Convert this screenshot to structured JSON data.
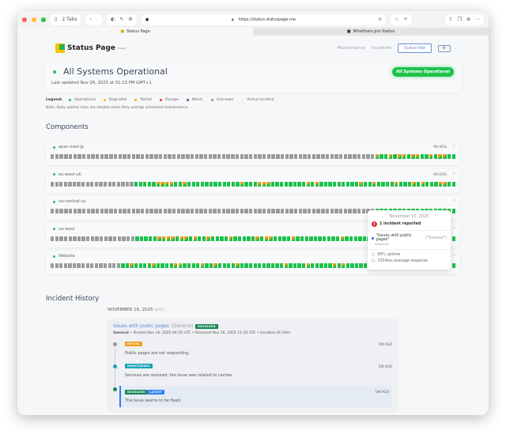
{
  "browser": {
    "tabs_count": "2 Tabs",
    "url": "https://status.statuspage.me",
    "tabs": [
      {
        "label": "Status Page"
      },
      {
        "label": "WhoHosts.pro Status"
      }
    ]
  },
  "header": {
    "logo": "Status Page",
    "logo_sub": "hosted",
    "nav": {
      "maintenance": "Maintenance",
      "incidents": "Incidents",
      "subscribe": "Subscribe"
    }
  },
  "status": {
    "title": "All Systems Operational",
    "updated": "Last updated Nov 26, 2025 at 01:23 PM GMT+1",
    "badge": "All Systems Operational"
  },
  "legend": {
    "label": "Legend:",
    "items": [
      {
        "label": "Operational",
        "color": "#19c24b"
      },
      {
        "label": "Degraded",
        "color": "#f5c400"
      },
      {
        "label": "Partial",
        "color": "#f59b12"
      },
      {
        "label": "Outage",
        "color": "#e53935"
      },
      {
        "label": "Maint.",
        "color": "#4a5a6a"
      },
      {
        "label": "Unknown",
        "color": "#8a8a8a"
      },
      {
        "label": "Active Incident",
        "color": "#f7ecd9"
      }
    ],
    "note": "Note: Daily uptime ticks are shaded when they overlap scheduled maintenance."
  },
  "components_title": "Components",
  "components": [
    {
      "name": "apac-east-jp",
      "uptime": "99.46%",
      "ticks": "uuuuuuuuuuuuuuuuuuuuuuuuuuuuuuuuuuuuuuuuuuuuuuuuuuuuuuuuuuuuuuuuuuuuuuuupoopoppoppoopoppoo"
    },
    {
      "name": "eu-west-uk",
      "uptime": "99.63%",
      "ticks": "uuuuuuuuuuuuuuuuuuuoooooppppoopoooooooooooopooopppoooooooopopooooooooopoopoooopooopopoooppoo"
    },
    {
      "name": "na-central-us",
      "uptime": "",
      "ticks": "uuuuuuuuuuuuuuuuuuuuuuuuuuuuuuuuuuuuuuuuuuuuuuuuuuuuuuuuuuuuuuuuuuuuuuuuoooooooooooooooooo"
    },
    {
      "name": "na-west",
      "uptime": "",
      "ticks": "uuuuuuuuuuuuuuuuuuuoooooppppoppopoopoooopooooopoppoooopoooooooooopoooooopoooopooopopooopopo"
    },
    {
      "name": "Website",
      "uptime": "",
      "ticks": "uuuuuuuuuuuuuuuuoopoooopooooppoooopoopoooopoooooooooopoooopooooopopoooooppoooopoooopopopoopo"
    }
  ],
  "tooltip": {
    "date": "November 16, 2025",
    "incidents": "1 incident reported",
    "incident_name": "\"Issues with public pages\"",
    "incident_group": "(\"General\")",
    "incident_status": "Resolved",
    "uptime": "99% uptime",
    "response": "1554ms average response"
  },
  "history": {
    "title": "Incident History",
    "date": "NOVEMBER 16, 2025",
    "tz": "(UTC)",
    "incident": {
      "title": "Issues with public pages",
      "group": "(General)",
      "badge": "RESOLVED",
      "meta_group": "General",
      "meta": " • Started Nov 16, 2025 04:50 UTC • Resolved Nov 16, 2025 11:50 UTC • Duration 6h 59m",
      "updates": [
        {
          "status": "INITIAL",
          "color": "#f59b12",
          "text": "Public pages are not responding.",
          "ago": "1W AGO"
        },
        {
          "status": "MONITORING",
          "color": "#17a2b8",
          "text": "Services are restored; the issue was related to caches.",
          "ago": "1W AGO"
        },
        {
          "status": "RESOLVED",
          "latest": "LATEST",
          "color": "#198754",
          "text": "The issue seems to be fixed.",
          "ago": "1W AGO"
        }
      ]
    }
  }
}
